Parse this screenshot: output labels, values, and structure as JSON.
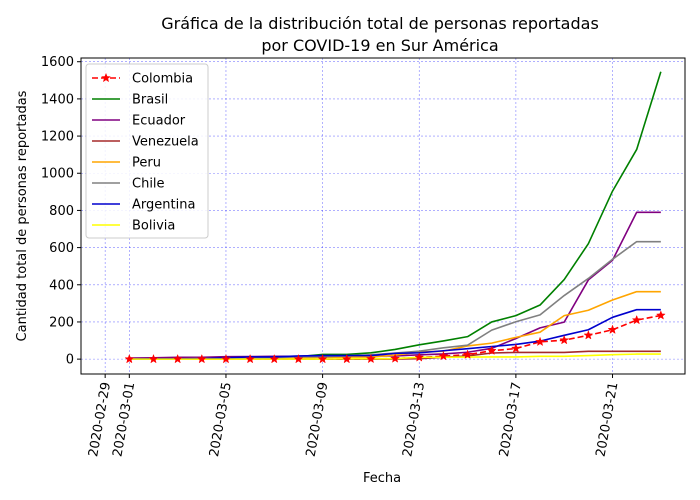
{
  "chart_data": {
    "type": "line",
    "title_lines": [
      "Gráfica de la distribución total de personas reportadas",
      "por COVID-19 en Sur América"
    ],
    "xlabel": "Fecha",
    "ylabel": "Cantidad total de personas reportadas",
    "xlim": [
      "2020-02-28",
      "2020-03-24"
    ],
    "ylim": [
      -80,
      1620
    ],
    "x_ticks": [
      "2020-02-29",
      "2020-03-01",
      "2020-03-05",
      "2020-03-09",
      "2020-03-13",
      "2020-03-17",
      "2020-03-21"
    ],
    "y_ticks": [
      0,
      200,
      400,
      600,
      800,
      1000,
      1200,
      1400,
      1600
    ],
    "grid": true,
    "legend_location": "upper-left",
    "x": [
      "2020-03-01",
      "2020-03-02",
      "2020-03-03",
      "2020-03-04",
      "2020-03-05",
      "2020-03-06",
      "2020-03-07",
      "2020-03-08",
      "2020-03-09",
      "2020-03-10",
      "2020-03-11",
      "2020-03-12",
      "2020-03-13",
      "2020-03-14",
      "2020-03-15",
      "2020-03-16",
      "2020-03-17",
      "2020-03-18",
      "2020-03-19",
      "2020-03-20",
      "2020-03-21",
      "2020-03-22",
      "2020-03-23"
    ],
    "series": [
      {
        "name": "Colombia",
        "color": "#ff0000",
        "dashed": true,
        "marker": "star",
        "values": [
          0,
          0,
          0,
          0,
          0,
          0,
          0,
          0,
          0,
          0,
          1,
          3,
          9,
          16,
          24,
          45,
          57,
          93,
          102,
          128,
          158,
          210,
          235
        ]
      },
      {
        "name": "Brasil",
        "color": "#008000",
        "values": [
          2,
          2,
          2,
          2,
          2,
          4,
          8,
          13,
          25,
          25,
          34,
          52,
          77,
          98,
          121,
          200,
          234,
          291,
          428,
          621,
          904,
          1128,
          1546
        ]
      },
      {
        "name": "Ecuador",
        "color": "#800080",
        "values": [
          6,
          7,
          10,
          10,
          13,
          14,
          15,
          15,
          15,
          15,
          17,
          17,
          23,
          28,
          37,
          58,
          111,
          168,
          199,
          426,
          532,
          790,
          790
        ]
      },
      {
        "name": "Venezuela",
        "color": "#a52a2a",
        "values": [
          0,
          0,
          0,
          0,
          0,
          0,
          0,
          0,
          0,
          0,
          0,
          0,
          2,
          10,
          17,
          33,
          36,
          36,
          36,
          42,
          42,
          42,
          42
        ]
      },
      {
        "name": "Peru",
        "color": "#ffa500",
        "values": [
          0,
          0,
          0,
          0,
          0,
          1,
          6,
          7,
          9,
          11,
          11,
          22,
          38,
          43,
          71,
          86,
          117,
          145,
          234,
          263,
          318,
          363,
          363
        ]
      },
      {
        "name": "Chile",
        "color": "#808080",
        "values": [
          0,
          0,
          1,
          4,
          4,
          5,
          7,
          13,
          13,
          17,
          23,
          33,
          43,
          61,
          75,
          156,
          201,
          238,
          342,
          434,
          537,
          632,
          632
        ]
      },
      {
        "name": "Argentina",
        "color": "#0000cd",
        "values": [
          0,
          2,
          2,
          2,
          8,
          12,
          12,
          17,
          19,
          19,
          19,
          31,
          34,
          45,
          56,
          68,
          79,
          97,
          128,
          158,
          225,
          266,
          266
        ]
      },
      {
        "name": "Bolivia",
        "color": "#ffff00",
        "values": [
          0,
          0,
          0,
          0,
          0,
          0,
          0,
          0,
          0,
          2,
          2,
          3,
          10,
          10,
          11,
          12,
          12,
          15,
          15,
          19,
          24,
          27,
          27
        ]
      }
    ]
  }
}
